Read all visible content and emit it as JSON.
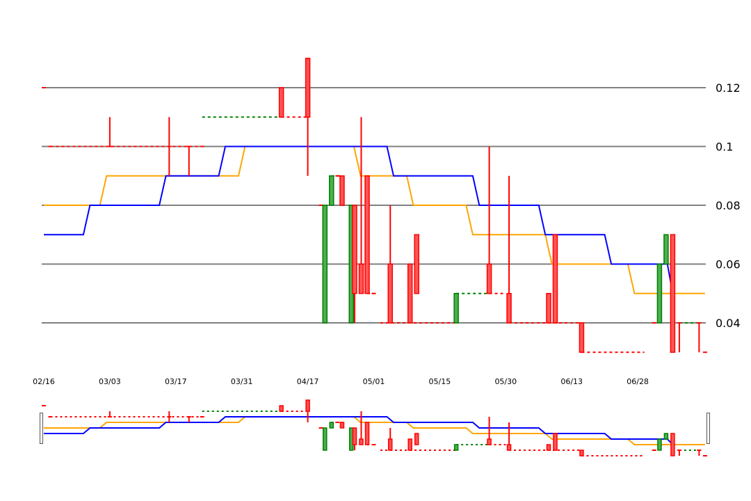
{
  "chart_data": {
    "type": "candlestick",
    "y_ticks": [
      "0.12",
      "0.1",
      "0.08",
      "0.06",
      "0.04"
    ],
    "y_tick_values": [
      0.12,
      0.1,
      0.08,
      0.06,
      0.04
    ],
    "ylim": [
      0.02,
      0.13
    ],
    "x_ticks": [
      "02/16",
      "03/03",
      "03/17",
      "03/31",
      "04/17",
      "05/01",
      "05/15",
      "05/30",
      "06/13",
      "06/28"
    ],
    "x_tick_index": [
      0,
      10,
      20,
      30,
      40,
      50,
      60,
      70,
      80,
      90
    ],
    "grid": true,
    "colors": {
      "up": "#008000",
      "down": "#ff0000",
      "ma_short": "#0000ff",
      "ma_long": "#ffa500",
      "grid": "#808080"
    },
    "candles": [
      {
        "i": 0,
        "o": 0.12,
        "h": 0.12,
        "l": 0.12,
        "c": 0.12
      },
      {
        "i": 1,
        "o": 0.1,
        "h": 0.1,
        "l": 0.1,
        "c": 0.1
      },
      {
        "i": 10,
        "o": 0.1,
        "h": 0.11,
        "l": 0.1,
        "c": 0.1
      },
      {
        "i": 19,
        "o": 0.1,
        "h": 0.11,
        "l": 0.09,
        "c": 0.1
      },
      {
        "i": 22,
        "o": 0.1,
        "h": 0.1,
        "l": 0.09,
        "c": 0.1
      },
      {
        "i": 24,
        "o": 0.1,
        "h": 0.1,
        "l": 0.1,
        "c": 0.1
      },
      {
        "i": 36,
        "o": 0.12,
        "h": 0.12,
        "l": 0.11,
        "c": 0.11
      },
      {
        "i": 40,
        "o": 0.13,
        "h": 0.13,
        "l": 0.09,
        "c": 0.11
      },
      {
        "i": 42,
        "o": 0.08,
        "h": 0.08,
        "l": 0.08,
        "c": 0.08
      },
      {
        "i": 42.6,
        "o": 0.04,
        "h": 0.08,
        "l": 0.04,
        "c": 0.08
      },
      {
        "i": 43.6,
        "o": 0.08,
        "h": 0.09,
        "l": 0.08,
        "c": 0.09
      },
      {
        "i": 44.5,
        "o": 0.09,
        "h": 0.09,
        "l": 0.09,
        "c": 0.09
      },
      {
        "i": 45.2,
        "o": 0.09,
        "h": 0.09,
        "l": 0.08,
        "c": 0.08
      },
      {
        "i": 46.6,
        "o": 0.04,
        "h": 0.08,
        "l": 0.04,
        "c": 0.08
      },
      {
        "i": 47.1,
        "o": 0.08,
        "h": 0.08,
        "l": 0.04,
        "c": 0.05
      },
      {
        "i": 48.1,
        "o": 0.06,
        "h": 0.11,
        "l": 0.05,
        "c": 0.05
      },
      {
        "i": 49.0,
        "o": 0.09,
        "h": 0.09,
        "l": 0.05,
        "c": 0.05
      },
      {
        "i": 50,
        "o": 0.05,
        "h": 0.05,
        "l": 0.05,
        "c": 0.05
      },
      {
        "i": 52.5,
        "o": 0.06,
        "h": 0.08,
        "l": 0.04,
        "c": 0.04
      },
      {
        "i": 55.5,
        "o": 0.06,
        "h": 0.06,
        "l": 0.04,
        "c": 0.04
      },
      {
        "i": 56.5,
        "o": 0.07,
        "h": 0.07,
        "l": 0.05,
        "c": 0.05
      },
      {
        "i": 62.5,
        "o": 0.04,
        "h": 0.05,
        "l": 0.04,
        "c": 0.05
      },
      {
        "i": 67.5,
        "o": 0.06,
        "h": 0.1,
        "l": 0.05,
        "c": 0.05
      },
      {
        "i": 70.5,
        "o": 0.05,
        "h": 0.09,
        "l": 0.04,
        "c": 0.04
      },
      {
        "i": 76.5,
        "o": 0.05,
        "h": 0.05,
        "l": 0.04,
        "c": 0.04
      },
      {
        "i": 77.5,
        "o": 0.07,
        "h": 0.07,
        "l": 0.04,
        "c": 0.04
      },
      {
        "i": 81.5,
        "o": 0.04,
        "h": 0.04,
        "l": 0.03,
        "c": 0.03
      },
      {
        "i": 92.5,
        "o": 0.04,
        "h": 0.04,
        "l": 0.04,
        "c": 0.04
      },
      {
        "i": 93.3,
        "o": 0.04,
        "h": 0.06,
        "l": 0.04,
        "c": 0.06
      },
      {
        "i": 94.3,
        "o": 0.06,
        "h": 0.07,
        "l": 0.06,
        "c": 0.07
      },
      {
        "i": 95.3,
        "o": 0.07,
        "h": 0.07,
        "l": 0.03,
        "c": 0.03
      },
      {
        "i": 96.3,
        "o": 0.04,
        "h": 0.04,
        "l": 0.03,
        "c": 0.04
      },
      {
        "i": 99.3,
        "o": 0.04,
        "h": 0.04,
        "l": 0.03,
        "c": 0.04
      },
      {
        "i": 100.2,
        "o": 0.03,
        "h": 0.03,
        "l": 0.03,
        "c": 0.03
      }
    ],
    "gaps": [
      {
        "from": 1,
        "to": 24,
        "v": 0.1,
        "color": "red"
      },
      {
        "from": 24,
        "to": 36,
        "v": 0.11,
        "color": "green"
      },
      {
        "from": 36,
        "to": 40,
        "v": 0.11,
        "color": "red"
      },
      {
        "from": 43.6,
        "to": 45.2,
        "v": 0.09,
        "color": "green"
      },
      {
        "from": 49.0,
        "to": 50,
        "v": 0.05,
        "color": "red"
      },
      {
        "from": 51,
        "to": 62.5,
        "v": 0.04,
        "color": "red"
      },
      {
        "from": 62.5,
        "to": 67.5,
        "v": 0.05,
        "color": "green"
      },
      {
        "from": 67.5,
        "to": 70,
        "v": 0.05,
        "color": "red"
      },
      {
        "from": 70.5,
        "to": 81.5,
        "v": 0.04,
        "color": "red"
      },
      {
        "from": 81.5,
        "to": 91,
        "v": 0.03,
        "color": "red"
      },
      {
        "from": 96.3,
        "to": 99.3,
        "v": 0.04,
        "color": "green"
      }
    ],
    "ma_short": [
      [
        0,
        0.07
      ],
      [
        6,
        0.07
      ],
      [
        7,
        0.08
      ],
      [
        17.5,
        0.08
      ],
      [
        18.5,
        0.09
      ],
      [
        26.5,
        0.09
      ],
      [
        27.5,
        0.1
      ],
      [
        52,
        0.1
      ],
      [
        53,
        0.09
      ],
      [
        65,
        0.09
      ],
      [
        66,
        0.08
      ],
      [
        75,
        0.08
      ],
      [
        76,
        0.07
      ],
      [
        85,
        0.07
      ],
      [
        86,
        0.06
      ],
      [
        94.5,
        0.06
      ],
      [
        95.3,
        0.05
      ]
    ],
    "ma_long": [
      [
        0,
        0.08
      ],
      [
        8.5,
        0.08
      ],
      [
        9.5,
        0.09
      ],
      [
        29.5,
        0.09
      ],
      [
        30.5,
        0.1
      ],
      [
        47,
        0.1
      ],
      [
        48,
        0.09
      ],
      [
        55,
        0.09
      ],
      [
        56,
        0.08
      ],
      [
        64,
        0.08
      ],
      [
        65,
        0.07
      ],
      [
        76,
        0.07
      ],
      [
        77,
        0.06
      ],
      [
        88.5,
        0.06
      ],
      [
        89.5,
        0.05
      ],
      [
        100.2,
        0.05
      ]
    ]
  }
}
